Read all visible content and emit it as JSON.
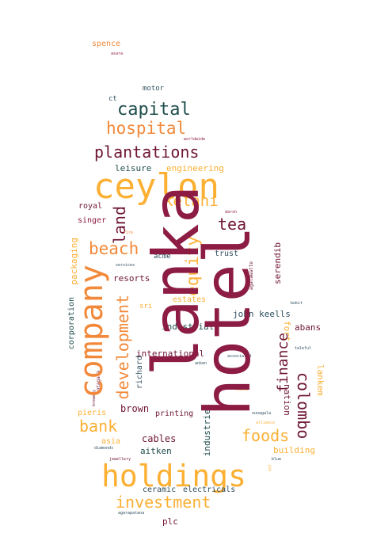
{
  "colors": {
    "crimson": "#8c1c44",
    "amber": "#fbb034",
    "orange": "#f2893a",
    "teal": "#1f4e4c",
    "slate": "#2f4f5f",
    "maroon": "#6e1636"
  },
  "words": {
    "spence": "spence",
    "asara": "asara",
    "motor": "motor",
    "ct": "ct",
    "capital": "capital",
    "hospital": "hospital",
    "worldwide": "worldwide",
    "plantations": "plantations",
    "leisure": "leisure",
    "engineering": "engineering",
    "ceylon": "ceylon",
    "kelani": "kelani",
    "lanka": "lanka",
    "hotel": "hotel",
    "company": "company",
    "tea": "tea",
    "land": "land",
    "royal": "royal",
    "singer": "singer",
    "beach": "beach",
    "equity": "equity",
    "darsh": "darsh",
    "packaging": "packaging",
    "fire": "fire",
    "trust": "trust",
    "serendib": "serendib",
    "acme": "acme",
    "services": "services",
    "resorts": "resorts",
    "agalawatte": "agalawatte",
    "development": "development",
    "sri": "sri",
    "estates": "estates",
    "corporation": "corporation",
    "bukit": "bukit",
    "john_keells": "john keells",
    "fort": "fort",
    "industrial": "industrial",
    "abans": "abans",
    "finance": "finance",
    "international": "international",
    "richard": "richard",
    "kotagala": "kotagala",
    "anken": "anken",
    "associated": "associated",
    "colombo": "colombo",
    "nation": "nation",
    "lankem": "lankem",
    "taleful": "taleful",
    "brown": "brown",
    "pieris": "pieris",
    "alpha": "alpha",
    "printing": "printing",
    "industries": "industries",
    "bank": "bank",
    "ouoagala": "ouoagala",
    "alliance": "alliance",
    "foods": "foods",
    "cables": "cables",
    "asia": "asia",
    "building": "building",
    "aitken": "aitken",
    "diamonds": "diamonds",
    "jewellery": "jewellery",
    "blue": "blue",
    "holdings": "holdings",
    "ceramic": "ceramic",
    "electricals": "electricals",
    "investment": "investment",
    "agarapatana": "agarapatana",
    "plc": "plc",
    "jkh": "jkh",
    "brewery": "brewery"
  }
}
